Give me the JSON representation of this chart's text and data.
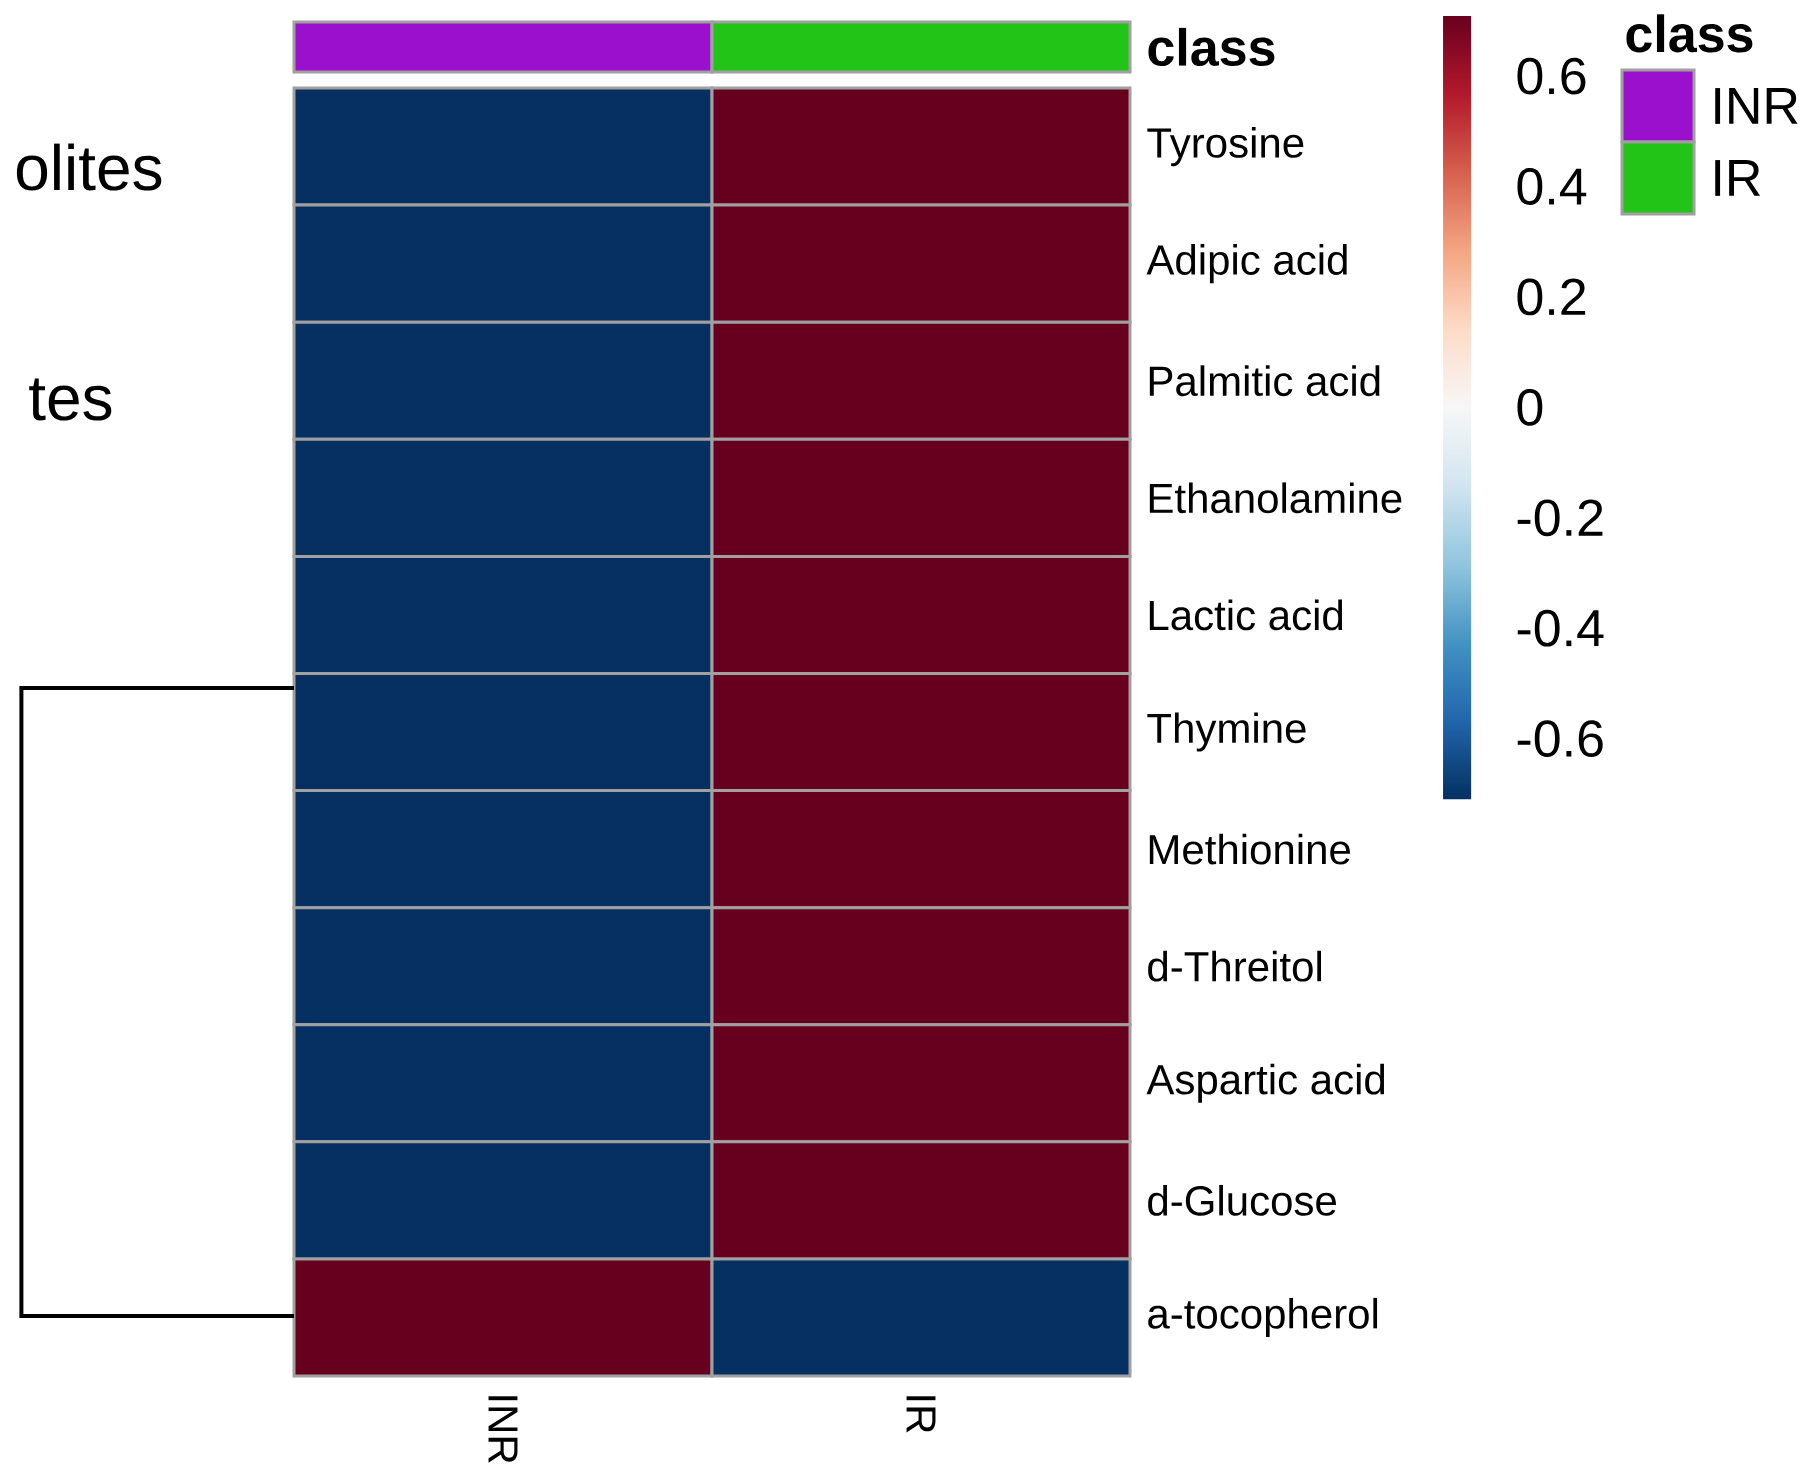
{
  "chart_data": [
    {
      "type": "other",
      "series": [
        {
          "name": "INR",
          "color": "#9b10cc"
        },
        {
          "name": "IR",
          "color": "#22c418"
        }
      ],
      "ylabel": "class",
      "legend_title": "class",
      "legend": "top right"
    },
    {
      "type": "heatmap",
      "categories": [
        "INR",
        "IR"
      ],
      "y_categories": [
        "Tyrosine",
        "Adipic acid",
        "Palmitic acid",
        "Ethanolamine",
        "Lactic acid",
        "Thymine",
        "Methionine",
        "d-Threitol",
        "Aspartic acid",
        "d-Glucose",
        "a-tocopherol"
      ],
      "cells": [
        [
          -0.71,
          0.71
        ],
        [
          -0.71,
          0.71
        ],
        [
          -0.71,
          0.71
        ],
        [
          -0.71,
          0.71
        ],
        [
          -0.71,
          0.71
        ],
        [
          -0.71,
          0.71
        ],
        [
          -0.71,
          0.71
        ],
        [
          -0.71,
          0.71
        ],
        [
          -0.71,
          0.71
        ],
        [
          -0.71,
          0.71
        ],
        [
          0.71,
          -0.71
        ]
      ],
      "clim": [
        -0.71,
        0.71
      ],
      "cticks": [
        -0.6,
        -0.4,
        -0.2,
        0,
        0.2,
        0.4,
        0.6
      ],
      "annotations": [
        "olites",
        "tes"
      ]
    }
  ]
}
